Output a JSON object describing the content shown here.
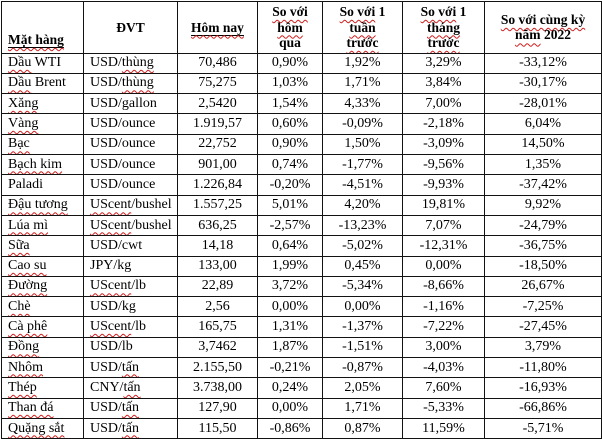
{
  "colors": {
    "background": "#ffffff",
    "text": "#000000",
    "border": "#121212",
    "spellcheck_squiggle": "#cf1d1d"
  },
  "table": {
    "columns": [
      {
        "key": "name",
        "label": "Mặt hàng",
        "marks": [
          "Mặt hàng"
        ],
        "underline": true
      },
      {
        "key": "unit",
        "label": "ĐVT",
        "marks": [],
        "underline": false
      },
      {
        "key": "today",
        "label": "Hôm nay",
        "marks": [
          "Hôm nay"
        ],
        "underline": true
      },
      {
        "key": "vs_yesterday",
        "label": "So với\nhôm\nqua",
        "marks": [
          "So với",
          "hôm"
        ],
        "underline": false
      },
      {
        "key": "vs_week",
        "label": "So với 1\ntuần\ntrước",
        "marks": [
          "So với",
          "tuần",
          "trước"
        ],
        "underline": false
      },
      {
        "key": "vs_month",
        "label": "So với 1\ntháng\ntrước",
        "marks": [
          "So với",
          "tháng",
          "trước"
        ],
        "underline": false
      },
      {
        "key": "vs_2022",
        "label": "So với cùng kỳ\nnăm 2022",
        "marks": [
          "So với cùng kỳ",
          "năm"
        ],
        "underline": false
      }
    ],
    "rows": [
      {
        "name": "Dầu WTI",
        "name_marks": [
          "Dầu"
        ],
        "unit": "USD/thùng",
        "unit_marks": [
          "thùng"
        ],
        "today": "70,486",
        "vs_yesterday": "0,90%",
        "vs_week": "1,92%",
        "vs_month": "3,29%",
        "vs_2022": "-33,12%"
      },
      {
        "name": "Dầu Brent",
        "name_marks": [
          "Dầu"
        ],
        "unit": "USD/thùng",
        "unit_marks": [
          "thùng"
        ],
        "today": "75,275",
        "vs_yesterday": "1,03%",
        "vs_week": "1,71%",
        "vs_month": "3,84%",
        "vs_2022": "-30,17%"
      },
      {
        "name": "Xăng",
        "name_marks": [
          "Xăng"
        ],
        "unit": "USD/gallon",
        "unit_marks": [],
        "today": "2,5420",
        "vs_yesterday": "1,54%",
        "vs_week": "4,33%",
        "vs_month": "7,00%",
        "vs_2022": "-28,01%"
      },
      {
        "name": "Vàng",
        "name_marks": [
          "Vàng"
        ],
        "unit": "USD/ounce",
        "unit_marks": [],
        "today": "1.919,57",
        "vs_yesterday": "0,60%",
        "vs_week": "-0,09%",
        "vs_month": "-2,18%",
        "vs_2022": "6,04%"
      },
      {
        "name": "Bạc",
        "name_marks": [
          "Bạc"
        ],
        "unit": "USD/ounce",
        "unit_marks": [],
        "today": "22,752",
        "vs_yesterday": "0,90%",
        "vs_week": "1,50%",
        "vs_month": "-3,09%",
        "vs_2022": "14,50%"
      },
      {
        "name": "Bạch kim",
        "name_marks": [
          "Bạch kim"
        ],
        "unit": "USD/ounce",
        "unit_marks": [],
        "today": "901,00",
        "vs_yesterday": "0,74%",
        "vs_week": "-1,77%",
        "vs_month": "-9,56%",
        "vs_2022": "1,35%"
      },
      {
        "name": "Paladi",
        "name_marks": [],
        "unit": "USD/ounce",
        "unit_marks": [],
        "today": "1.226,84",
        "vs_yesterday": "-0,20%",
        "vs_week": "-4,51%",
        "vs_month": "-9,93%",
        "vs_2022": "-37,42%"
      },
      {
        "name": "Đậu tương",
        "name_marks": [
          "Đậu tương"
        ],
        "unit": "UScent/bushel",
        "unit_marks": [
          "UScent"
        ],
        "today": "1.557,25",
        "vs_yesterday": "5,01%",
        "vs_week": "4,20%",
        "vs_month": "19,81%",
        "vs_2022": "9,92%"
      },
      {
        "name": "Lúa mì",
        "name_marks": [
          "Lúa mì"
        ],
        "unit": "UScent/bushel",
        "unit_marks": [
          "UScent"
        ],
        "today": "636,25",
        "vs_yesterday": "-2,57%",
        "vs_week": "-13,23%",
        "vs_month": "7,07%",
        "vs_2022": "-24,79%"
      },
      {
        "name": "Sữa",
        "name_marks": [
          "Sữa"
        ],
        "unit": "USD/cwt",
        "unit_marks": [],
        "today": "14,18",
        "vs_yesterday": "0,64%",
        "vs_week": "-5,02%",
        "vs_month": "-12,31%",
        "vs_2022": "-36,75%"
      },
      {
        "name": "Cao su",
        "name_marks": [
          "Cao su"
        ],
        "unit": "JPY/kg",
        "unit_marks": [],
        "today": "133,00",
        "vs_yesterday": "1,99%",
        "vs_week": "0,45%",
        "vs_month": "0,00%",
        "vs_2022": "-18,50%"
      },
      {
        "name": "Đường",
        "name_marks": [
          "Đường"
        ],
        "unit": "UScent/lb",
        "unit_marks": [
          "UScent"
        ],
        "today": "22,89",
        "vs_yesterday": "3,72%",
        "vs_week": "-5,34%",
        "vs_month": "-8,66%",
        "vs_2022": "26,67%"
      },
      {
        "name": "Chè",
        "name_marks": [
          "Chè"
        ],
        "unit": "USD/kg",
        "unit_marks": [],
        "today": "2,56",
        "vs_yesterday": "0,00%",
        "vs_week": "0,00%",
        "vs_month": "-1,16%",
        "vs_2022": "-7,25%"
      },
      {
        "name": "Cà phê",
        "name_marks": [
          "Cà phê"
        ],
        "unit": "UScent/lb",
        "unit_marks": [
          "UScent"
        ],
        "today": "165,75",
        "vs_yesterday": "1,31%",
        "vs_week": "-1,37%",
        "vs_month": "-7,22%",
        "vs_2022": "-27,45%"
      },
      {
        "name": "Đồng",
        "name_marks": [
          "Đồng"
        ],
        "unit": "USD/lb",
        "unit_marks": [],
        "today": "3,7462",
        "vs_yesterday": "1,87%",
        "vs_week": "-1,51%",
        "vs_month": "3,00%",
        "vs_2022": "3,79%"
      },
      {
        "name": "Nhôm",
        "name_marks": [
          "Nhôm"
        ],
        "unit": "USD/tấn",
        "unit_marks": [
          "tấn"
        ],
        "today": "2.155,50",
        "vs_yesterday": "-0,21%",
        "vs_week": "-0,87%",
        "vs_month": "-4,03%",
        "vs_2022": "-11,80%"
      },
      {
        "name": "Thép",
        "name_marks": [
          "Thép"
        ],
        "unit": "CNY/tấn",
        "unit_marks": [
          "tấn"
        ],
        "today": "3.738,00",
        "vs_yesterday": "0,24%",
        "vs_week": "2,05%",
        "vs_month": "7,60%",
        "vs_2022": "-16,93%"
      },
      {
        "name": "Than đá",
        "name_marks": [
          "Than đá"
        ],
        "unit": "USD/tấn",
        "unit_marks": [
          "tấn"
        ],
        "today": "127,90",
        "vs_yesterday": "0,00%",
        "vs_week": "1,71%",
        "vs_month": "-5,33%",
        "vs_2022": "-66,86%"
      },
      {
        "name": "Quặng sắt",
        "name_marks": [
          "Quặng sắt"
        ],
        "unit": "USD/tấn",
        "unit_marks": [
          "tấn"
        ],
        "today": "115,50",
        "vs_yesterday": "-0,86%",
        "vs_week": "0,87%",
        "vs_month": "11,59%",
        "vs_2022": "-5,71%"
      }
    ]
  }
}
